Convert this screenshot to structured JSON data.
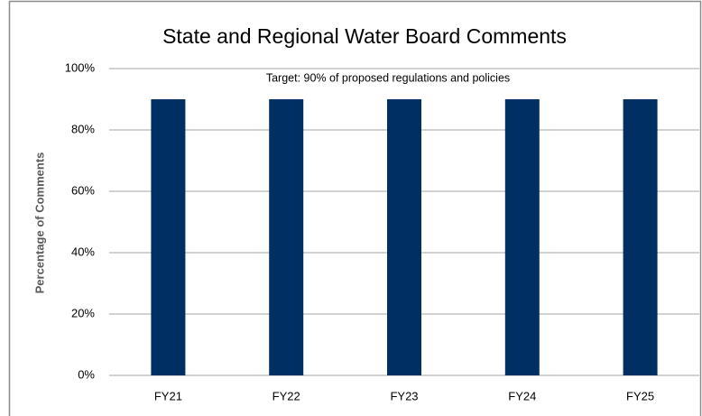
{
  "chart_data": {
    "type": "bar",
    "title": "State and Regional Water Board Comments",
    "annotation": "Target: 90% of proposed regulations and policies",
    "y_label": "Percentage of Comments",
    "categories": [
      "FY21",
      "FY22",
      "FY23",
      "FY24",
      "FY25"
    ],
    "values": [
      90,
      90,
      90,
      90,
      90
    ],
    "color": "#003063",
    "ylim": [
      0,
      100
    ],
    "yticks": [
      {
        "value": 0,
        "label": "0%"
      },
      {
        "value": 20,
        "label": "20%"
      },
      {
        "value": 40,
        "label": "40%"
      },
      {
        "value": 60,
        "label": "60%"
      },
      {
        "value": 80,
        "label": "80%"
      },
      {
        "value": 100,
        "label": "100%"
      }
    ],
    "grid": true
  }
}
